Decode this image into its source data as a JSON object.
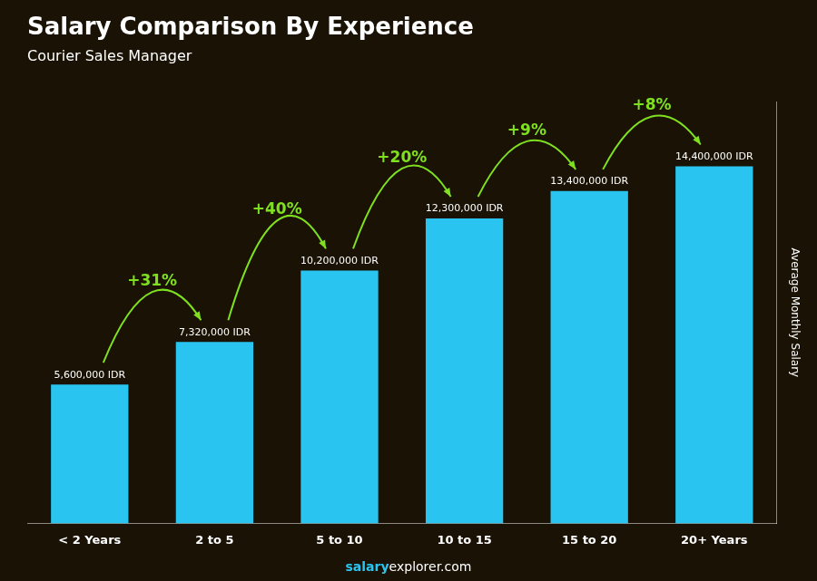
{
  "chart_data": {
    "type": "bar",
    "title": "Salary Comparison By Experience",
    "subtitle": "Courier Sales Manager",
    "categories": [
      "< 2 Years",
      "2 to 5",
      "5 to 10",
      "10 to 15",
      "15 to 20",
      "20+ Years"
    ],
    "values": [
      5600000,
      7320000,
      10200000,
      12300000,
      13400000,
      14400000
    ],
    "value_labels": [
      "5,600,000 IDR",
      "7,320,000 IDR",
      "10,200,000 IDR",
      "12,300,000 IDR",
      "13,400,000 IDR",
      "14,400,000 IDR"
    ],
    "data_labels": true,
    "annotations": [
      "+31%",
      "+40%",
      "+20%",
      "+9%",
      "+8%"
    ],
    "footer": [
      "salary",
      "explorer.com"
    ],
    "color": "#29C5F0",
    "ylabel": "Average Monthly Salary",
    "ylim": [
      0,
      17000000
    ],
    "tick_labels": "x",
    "grid": false
  }
}
